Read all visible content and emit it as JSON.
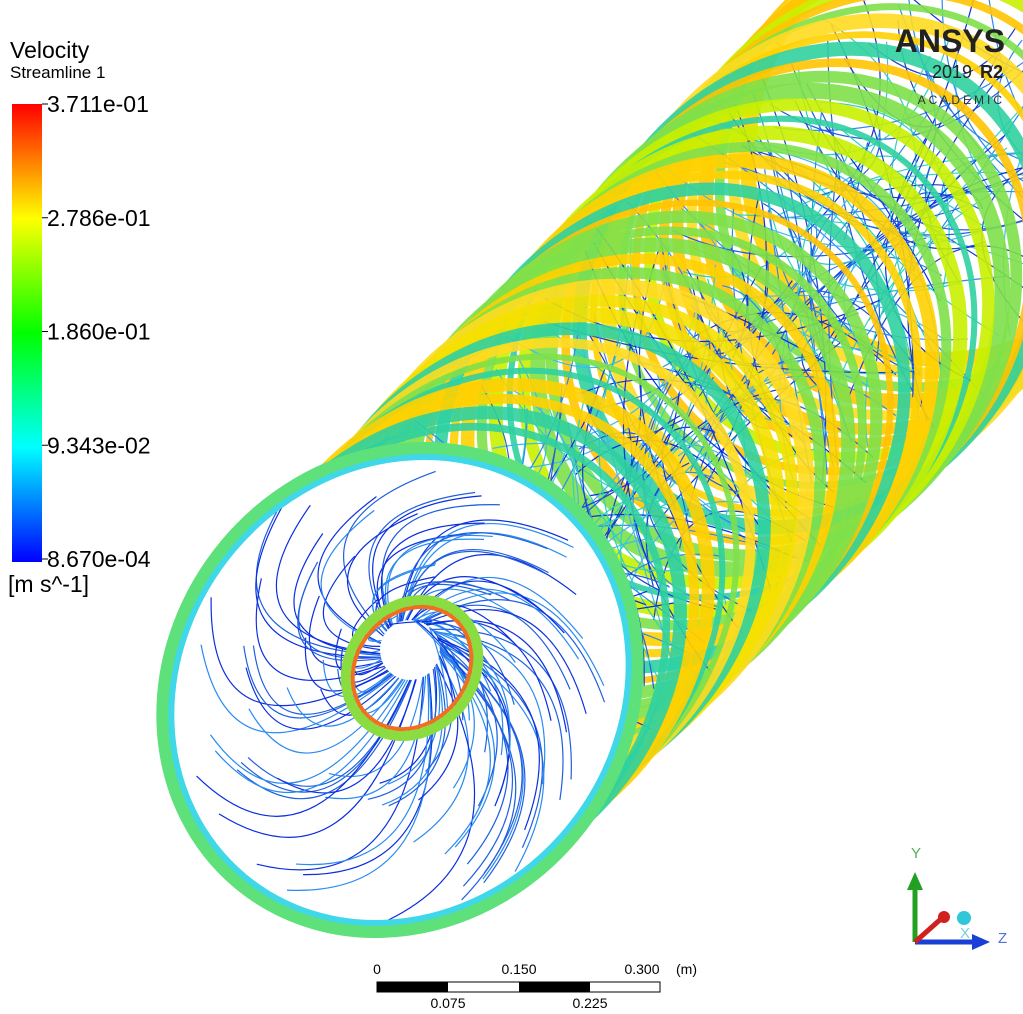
{
  "legend": {
    "title": "Velocity",
    "subtitle": "Streamline 1",
    "labels": [
      "3.711e-01",
      "2.786e-01",
      "1.860e-01",
      "9.343e-02",
      "8.670e-04"
    ],
    "unit": "[m s^-1]"
  },
  "logo": {
    "name": "ANSYS",
    "version": "2019",
    "release": "R2",
    "edition": "ACADEMIC"
  },
  "scale_bar": {
    "top_labels": [
      "0",
      "0.150",
      "0.300"
    ],
    "unit": "(m)",
    "bottom_labels": [
      "0.075",
      "0.225"
    ]
  },
  "axes": {
    "y": "Y",
    "x": "X",
    "z": "Z"
  }
}
